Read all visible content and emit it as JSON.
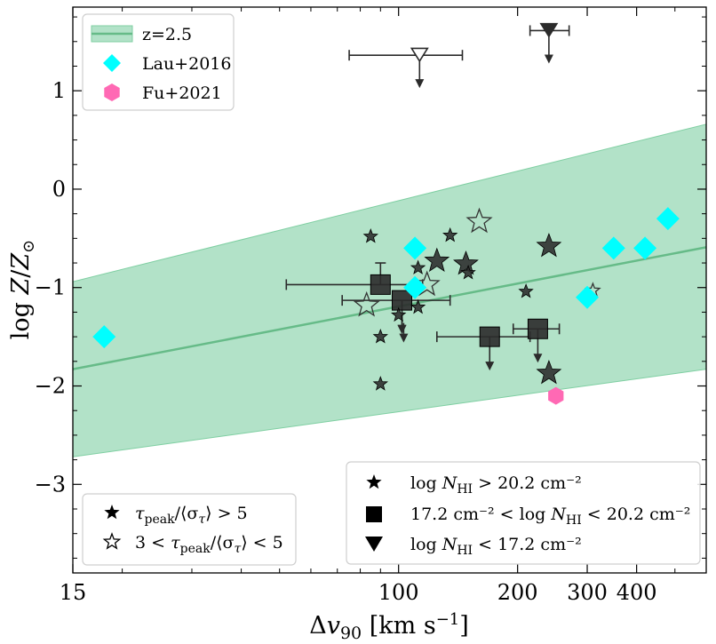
{
  "chart_data": {
    "type": "scatter",
    "xscale": "log",
    "xlim": [
      15,
      600
    ],
    "ylim": [
      -3.9,
      1.85
    ],
    "xticks": [
      15,
      100,
      200,
      300,
      400
    ],
    "xtick_labels": [
      "15",
      "100",
      "200",
      "300",
      "400"
    ],
    "yticks": [
      -3,
      -2,
      -1,
      0,
      1
    ],
    "ytick_labels": [
      "−3",
      "−2",
      "−1",
      "0",
      "1"
    ],
    "xlabel": "Δv₉₀ [km s⁻¹]",
    "ylabel": "log Z/Z⊙",
    "colors": {
      "band": "#b2e2c8",
      "band_edge": "#7fcfa2",
      "fit_line": "#66bb88",
      "lau": "#00ffff",
      "fu": "#ff69b4",
      "marker": "#2b2b2b"
    },
    "band": {
      "x": [
        15,
        600
      ],
      "y_lower": [
        -2.72,
        -1.83
      ],
      "y_upper": [
        -0.94,
        0.66
      ],
      "y_mid": [
        -1.83,
        -0.59
      ]
    },
    "series": [
      {
        "name": "Lau+2016",
        "marker": "diamond",
        "points": [
          [
            18,
            -1.5
          ],
          [
            110,
            -0.6
          ],
          [
            110,
            -1.0
          ],
          [
            300,
            -1.1
          ],
          [
            350,
            -0.6
          ],
          [
            420,
            -0.6
          ],
          [
            480,
            -0.3
          ]
        ]
      },
      {
        "name": "Fu+2021",
        "marker": "hexagon",
        "points": [
          [
            250,
            -2.1
          ]
        ]
      },
      {
        "name": "stars_filled",
        "marker": "star-filled",
        "points": [
          [
            85,
            -0.48
          ],
          [
            90,
            -1.5
          ],
          [
            90,
            -1.98
          ],
          [
            112,
            -0.8
          ],
          [
            125,
            -0.73
          ],
          [
            135,
            -0.47
          ],
          [
            148,
            -0.76
          ],
          [
            150,
            -0.85
          ],
          [
            210,
            -1.04
          ],
          [
            240,
            -0.58
          ],
          [
            240,
            -1.87
          ],
          [
            110,
            -1.0
          ],
          [
            112,
            -1.2
          ],
          [
            100,
            -1.28
          ]
        ],
        "sizes": [
          1,
          1,
          1,
          1,
          2,
          1,
          2,
          1,
          1,
          2,
          2,
          1,
          1,
          1
        ]
      },
      {
        "name": "stars_open",
        "marker": "star-open",
        "points": [
          [
            160,
            -0.33
          ],
          [
            118,
            -0.97
          ],
          [
            83,
            -1.18
          ],
          [
            310,
            -1.03
          ]
        ],
        "sizes": [
          2,
          2,
          2,
          1
        ]
      },
      {
        "name": "squares",
        "marker": "square",
        "points": [
          [
            90,
            -0.97
          ],
          [
            102,
            -1.13
          ],
          [
            170,
            -1.5
          ],
          [
            225,
            -1.42
          ]
        ],
        "xerr": [
          [
            52,
            115
          ],
          [
            72,
            135
          ],
          [
            125,
            215
          ],
          [
            195,
            255
          ]
        ],
        "yerr": [
          [
            -0.75,
            -0.75
          ],
          [
            null,
            null
          ],
          [
            null,
            null
          ],
          [
            null,
            null
          ]
        ],
        "upper_limit": [
          false,
          true,
          true,
          true
        ]
      },
      {
        "name": "triangles",
        "marker": "triangle",
        "points": [
          [
            113,
            1.37
          ],
          [
            240,
            1.62
          ]
        ],
        "open": [
          true,
          false
        ],
        "xerr": [
          [
            75,
            145
          ],
          [
            215,
            270
          ]
        ],
        "upper_limit": [
          true,
          true
        ]
      },
      {
        "name": "small_limit_triangles",
        "marker": "triangle-down",
        "points": [
          [
            103,
            -1.36
          ],
          [
            102,
            -1.27
          ]
        ]
      }
    ],
    "legend_top": {
      "position": "upper-left",
      "entries": [
        {
          "label": "z=2.5",
          "type": "band"
        },
        {
          "label": "Lau+2016",
          "type": "diamond"
        },
        {
          "label": "Fu+2021",
          "type": "hexagon"
        }
      ]
    },
    "legend_tau": {
      "position": "lower-left",
      "entries": [
        {
          "prefix": "τ",
          "sub": "peak",
          "rest": "/⟨σ",
          "sub2": "τ",
          "tail": "⟩ > 5",
          "type": "star-filled"
        },
        {
          "lead": "3 < τ",
          "sub": "peak",
          "rest": "/⟨σ",
          "sub2": "τ",
          "tail": "⟩ < 5",
          "type": "star-open"
        }
      ]
    },
    "legend_nhi": {
      "position": "lower-right",
      "entries": [
        {
          "text": "log N",
          "sub": "HI",
          "tail": " > 20.2 cm⁻²",
          "type": "star-filled"
        },
        {
          "text": "17.2 cm⁻² < log N",
          "sub": "HI",
          "tail": " < 20.2 cm⁻²",
          "type": "square"
        },
        {
          "text": "log N",
          "sub": "HI",
          "tail": " < 17.2 cm⁻²",
          "type": "triangle"
        }
      ]
    }
  }
}
